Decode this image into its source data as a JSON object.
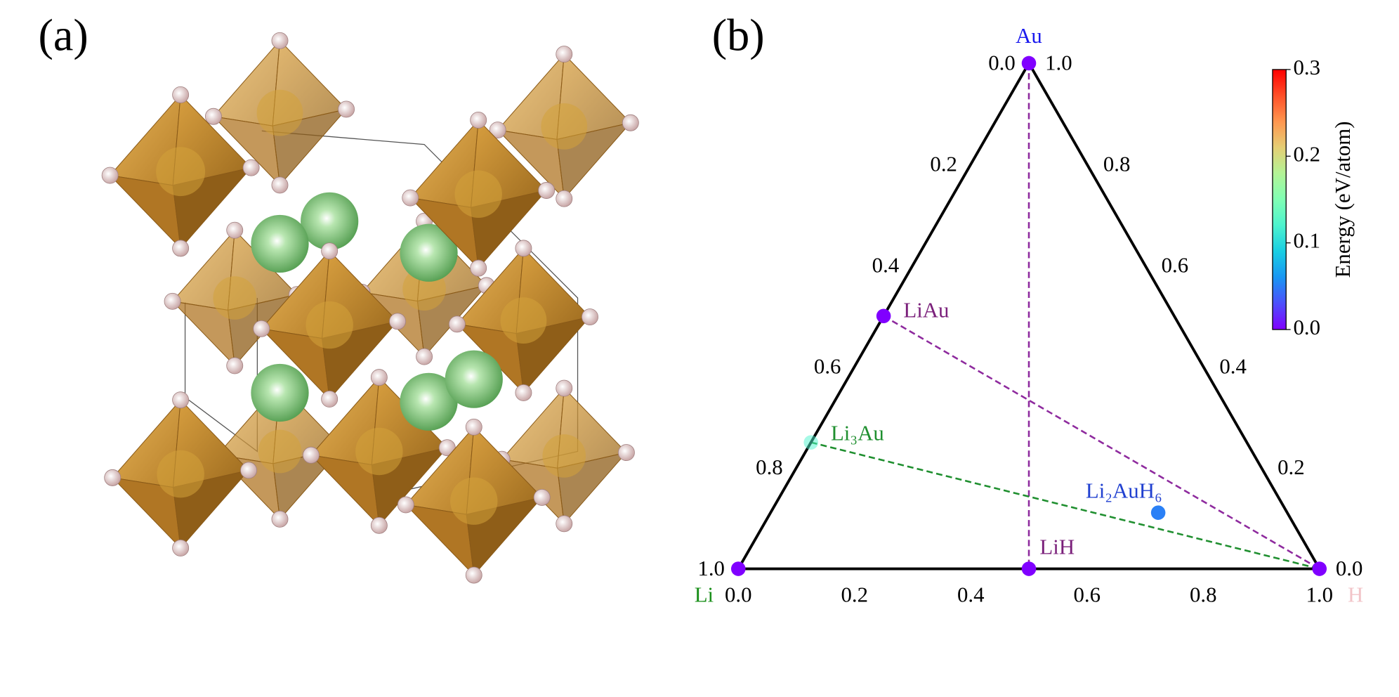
{
  "panel_a": {
    "label": "(a)"
  },
  "chart_data": {
    "type": "ternary",
    "panel_label": "(b)",
    "vertices": [
      {
        "name": "Li",
        "color": "#1a8f1a"
      },
      {
        "name": "H",
        "color": "#f2c4c8"
      },
      {
        "name": "Au",
        "color": "#1a1aee"
      }
    ],
    "bottom_ticks": [
      {
        "value": 0,
        "label": "0.0"
      },
      {
        "value": 0.2,
        "label": "0.2"
      },
      {
        "value": 0.4,
        "label": "0.4"
      },
      {
        "value": 0.6,
        "label": "0.6"
      },
      {
        "value": 0.8,
        "label": "0.8"
      },
      {
        "value": 1,
        "label": "1.0"
      }
    ],
    "left_ticks": [
      {
        "value": 0,
        "label": "0.0"
      },
      {
        "value": 0.2,
        "label": "0.2"
      },
      {
        "value": 0.4,
        "label": "0.4"
      },
      {
        "value": 0.6,
        "label": "0.6"
      },
      {
        "value": 0.8,
        "label": "0.8"
      },
      {
        "value": 1,
        "label": "1.0"
      }
    ],
    "right_ticks": [
      {
        "value": 0,
        "label": "0.0"
      },
      {
        "value": 0.2,
        "label": "0.2"
      },
      {
        "value": 0.4,
        "label": "0.4"
      },
      {
        "value": 0.6,
        "label": "0.6"
      },
      {
        "value": 0.8,
        "label": "0.8"
      },
      {
        "value": 1,
        "label": "1.0"
      }
    ],
    "points": [
      {
        "name": "Au",
        "li": 0,
        "au": 1,
        "h": 0,
        "energy": 0
      },
      {
        "name": "Li",
        "li": 1,
        "au": 0,
        "h": 0,
        "energy": 0
      },
      {
        "name": "H",
        "li": 0,
        "au": 0,
        "h": 1,
        "energy": 0
      },
      {
        "name": "LiAu",
        "li": 0.5,
        "au": 0.5,
        "h": 0,
        "energy": 0
      },
      {
        "name": "Li₃Au",
        "li": 0.75,
        "au": 0.25,
        "h": 0,
        "energy": 0.12
      },
      {
        "name": "LiH",
        "li": 0.5,
        "au": 0,
        "h": 0.5,
        "energy": 0
      },
      {
        "name": "Li₂AuH₆",
        "li": 0.222,
        "au": 0.111,
        "h": 0.667,
        "energy": 0.05
      }
    ],
    "tie_lines": [
      {
        "from": "Au",
        "to": "LiH",
        "color": "#8e2a9e"
      },
      {
        "from": "LiAu",
        "to": "H",
        "color": "#8e2a9e"
      },
      {
        "from": "Li₃Au",
        "to": "H",
        "color": "#1f8f2f"
      }
    ],
    "label_colors": {
      "LiAu": "#7a1f7a",
      "Li₃Au": "#1f8f2f",
      "LiH": "#7a1f7a",
      "Li₂AuH₆": "#2040d0"
    },
    "colorbar": {
      "label": "Energy (eV/atom)",
      "colormap": "rainbow",
      "lim": [
        0,
        0.3
      ],
      "ticks": [
        {
          "value": 0,
          "label": "0.0"
        },
        {
          "value": 0.1,
          "label": "0.1"
        },
        {
          "value": 0.2,
          "label": "0.2"
        },
        {
          "value": 0.3,
          "label": "0.3"
        }
      ]
    }
  }
}
